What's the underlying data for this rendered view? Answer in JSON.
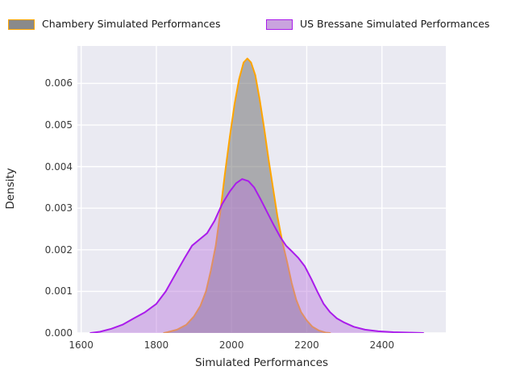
{
  "figure": {
    "background": "#ffffff",
    "plot_background": "#eaeaf2",
    "grid_color": "#ffffff"
  },
  "legend": {
    "position": "top",
    "items": [
      {
        "label": "Chambery Simulated Performances",
        "slug": "chambery",
        "swatch_fill": "#8a8a8a",
        "swatch_edge": "#ffa500"
      },
      {
        "label": "US Bressane Simulated Performances",
        "slug": "us-bressane",
        "swatch_fill": "#c9a3de",
        "swatch_edge": "#aa1ceb"
      }
    ]
  },
  "chart_data": {
    "type": "area",
    "subtype": "kde-density",
    "title": "",
    "xlabel": "Simulated Performances",
    "ylabel": "Density",
    "xlim": [
      1590,
      2570
    ],
    "ylim": [
      0,
      0.0069
    ],
    "grid": true,
    "legend_position": "top",
    "xticks": [
      1600,
      1800,
      2000,
      2200,
      2400
    ],
    "xtick_labels": [
      "1600",
      "1800",
      "2000",
      "2200",
      "2400"
    ],
    "yticks": [
      0,
      0.001,
      0.002,
      0.003,
      0.004,
      0.005,
      0.006
    ],
    "ytick_labels": [
      "0.000",
      "0.001",
      "0.002",
      "0.003",
      "0.004",
      "0.005",
      "0.006"
    ],
    "series": [
      {
        "name": "Chambery Simulated Performances",
        "slug": "chambery",
        "line_color": "#ffa500",
        "fill_color": "#696969",
        "fill_opacity": 0.5,
        "peak": {
          "x": 2042,
          "y": 0.0066
        },
        "points": [
          [
            1820,
            0
          ],
          [
            1830,
            2e-05
          ],
          [
            1855,
            8e-05
          ],
          [
            1880,
            0.0002
          ],
          [
            1900,
            0.0004
          ],
          [
            1917,
            0.00065
          ],
          [
            1932,
            0.001
          ],
          [
            1945,
            0.0015
          ],
          [
            1958,
            0.0021
          ],
          [
            1970,
            0.0029
          ],
          [
            1982,
            0.0038
          ],
          [
            1995,
            0.0047
          ],
          [
            2008,
            0.0055
          ],
          [
            2020,
            0.0061
          ],
          [
            2032,
            0.0065
          ],
          [
            2042,
            0.0066
          ],
          [
            2052,
            0.0065
          ],
          [
            2063,
            0.0062
          ],
          [
            2075,
            0.0056
          ],
          [
            2087,
            0.0049
          ],
          [
            2098,
            0.0042
          ],
          [
            2110,
            0.0035
          ],
          [
            2122,
            0.0028
          ],
          [
            2135,
            0.0022
          ],
          [
            2148,
            0.0017
          ],
          [
            2160,
            0.0012
          ],
          [
            2172,
            0.0008
          ],
          [
            2185,
            0.0005
          ],
          [
            2200,
            0.0003
          ],
          [
            2215,
            0.00015
          ],
          [
            2232,
            6e-05
          ],
          [
            2250,
            1e-05
          ],
          [
            2262,
            0
          ]
        ]
      },
      {
        "name": "US Bressane Simulated Performances",
        "slug": "us-bressane",
        "line_color": "#aa1ceb",
        "fill_color": "#ba78dc",
        "fill_opacity": 0.45,
        "peak": {
          "x": 2028,
          "y": 0.0037
        },
        "points": [
          [
            1625,
            0
          ],
          [
            1650,
            3e-05
          ],
          [
            1680,
            0.0001
          ],
          [
            1710,
            0.0002
          ],
          [
            1740,
            0.00035
          ],
          [
            1770,
            0.0005
          ],
          [
            1800,
            0.0007
          ],
          [
            1825,
            0.001
          ],
          [
            1850,
            0.0014
          ],
          [
            1875,
            0.0018
          ],
          [
            1895,
            0.0021
          ],
          [
            1915,
            0.00225
          ],
          [
            1935,
            0.0024
          ],
          [
            1955,
            0.0027
          ],
          [
            1975,
            0.0031
          ],
          [
            1995,
            0.0034
          ],
          [
            2012,
            0.0036
          ],
          [
            2028,
            0.0037
          ],
          [
            2045,
            0.00365
          ],
          [
            2060,
            0.0035
          ],
          [
            2078,
            0.0032
          ],
          [
            2095,
            0.0029
          ],
          [
            2112,
            0.0026
          ],
          [
            2130,
            0.0023
          ],
          [
            2145,
            0.0021
          ],
          [
            2162,
            0.00195
          ],
          [
            2178,
            0.0018
          ],
          [
            2195,
            0.0016
          ],
          [
            2212,
            0.0013
          ],
          [
            2228,
            0.001
          ],
          [
            2245,
            0.0007
          ],
          [
            2262,
            0.0005
          ],
          [
            2280,
            0.00035
          ],
          [
            2300,
            0.00025
          ],
          [
            2325,
            0.00015
          ],
          [
            2355,
            8e-05
          ],
          [
            2390,
            4e-05
          ],
          [
            2430,
            2e-05
          ],
          [
            2470,
            1e-05
          ],
          [
            2510,
            0
          ]
        ]
      }
    ]
  }
}
